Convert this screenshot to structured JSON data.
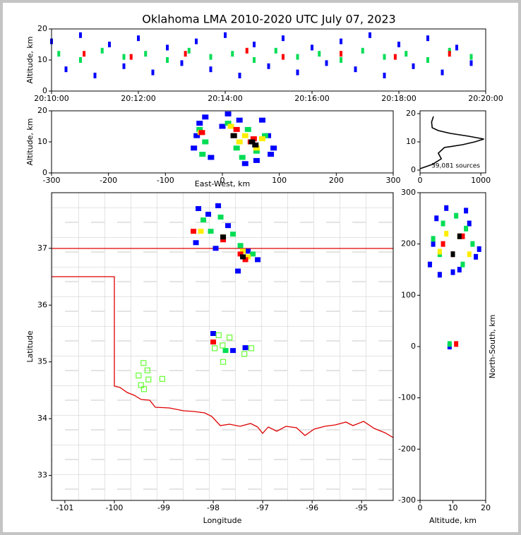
{
  "chart_data": [
    {
      "type": "density",
      "title": "Oklahoma LMA 2010-2020 UTC July 07, 2023",
      "ylabel": "Altitude, km",
      "xlim": [
        "20:10:00",
        "20:20:00"
      ],
      "xticks": [
        "20:10:00",
        "20:12:00",
        "20:14:00",
        "20:16:00",
        "20:18:00",
        "20:20:00"
      ],
      "ylim": [
        0,
        20
      ],
      "yticks": [
        0,
        10,
        20
      ],
      "series": [
        {
          "color": "#0000ff",
          "x": [
            "20:10:00",
            "20:10:20",
            "20:10:40",
            "20:11:00",
            "20:11:20",
            "20:11:40",
            "20:12:00",
            "20:12:20",
            "20:12:40",
            "20:13:00",
            "20:13:20",
            "20:13:40",
            "20:14:00",
            "20:14:20",
            "20:14:40",
            "20:15:00",
            "20:15:20",
            "20:15:40",
            "20:16:00",
            "20:16:20",
            "20:16:40",
            "20:17:00",
            "20:17:20",
            "20:17:40",
            "20:18:00",
            "20:18:20",
            "20:18:40",
            "20:19:00",
            "20:19:20",
            "20:19:40"
          ],
          "y": [
            16,
            7,
            18,
            5,
            15,
            8,
            17,
            6,
            14,
            9,
            16,
            7,
            18,
            5,
            15,
            8,
            17,
            6,
            14,
            9,
            16,
            7,
            18,
            5,
            15,
            8,
            17,
            6,
            14,
            9
          ]
        },
        {
          "color": "#00dd55",
          "x": [
            "20:10:10",
            "20:10:40",
            "20:11:10",
            "20:11:40",
            "20:12:10",
            "20:12:40",
            "20:13:10",
            "20:13:40",
            "20:14:10",
            "20:14:40",
            "20:15:10",
            "20:15:40",
            "20:16:10",
            "20:16:40",
            "20:17:10",
            "20:17:40",
            "20:18:10",
            "20:18:40",
            "20:19:10",
            "20:19:40"
          ],
          "y": [
            12,
            10,
            13,
            11,
            12,
            10,
            13,
            11,
            12,
            10,
            13,
            11,
            12,
            10,
            13,
            11,
            12,
            10,
            13,
            11
          ]
        },
        {
          "color": "#ff0000",
          "x": [
            "20:10:45",
            "20:11:50",
            "20:13:05",
            "20:14:30",
            "20:15:20",
            "20:16:40",
            "20:17:55",
            "20:19:10"
          ],
          "y": [
            12,
            11,
            12,
            13,
            11,
            12,
            11,
            12
          ]
        }
      ]
    },
    {
      "type": "density",
      "xlabel": "East-West, km",
      "ylabel": "Altitude, km",
      "xlim": [
        -300,
        300
      ],
      "xticks": [
        -300,
        -200,
        -100,
        0,
        100,
        200,
        300
      ],
      "ylim": [
        0,
        20
      ],
      "yticks": [
        0,
        10,
        20
      ],
      "series": [
        {
          "color": "#0000ff",
          "x": [
            -50,
            -40,
            -30,
            -20,
            0,
            10,
            30,
            60,
            80,
            90,
            -45,
            70,
            40,
            85
          ],
          "y": [
            8,
            16,
            18,
            5,
            15,
            19,
            17,
            4,
            12,
            8,
            12,
            17,
            3,
            6
          ]
        },
        {
          "color": "#00dd55",
          "x": [
            -40,
            -30,
            10,
            25,
            45,
            60,
            75,
            -35,
            35
          ],
          "y": [
            14,
            10,
            16,
            8,
            14,
            7,
            12,
            6,
            5
          ]
        },
        {
          "color": "#ffee00",
          "x": [
            -38,
            15,
            30,
            40,
            60,
            70
          ],
          "y": [
            13,
            15,
            10,
            12,
            8,
            11
          ]
        },
        {
          "color": "#ff0000",
          "x": [
            -36,
            20,
            25,
            50,
            55
          ],
          "y": [
            13,
            12,
            14,
            10,
            11
          ]
        },
        {
          "color": "#000000",
          "x": [
            20,
            52,
            58
          ],
          "y": [
            12,
            10,
            9
          ]
        }
      ]
    },
    {
      "type": "line",
      "annotation": "39,081 sources",
      "xlim": [
        0,
        1080
      ],
      "xticks": [
        0,
        1000
      ],
      "ylim": [
        -1,
        21
      ],
      "yticks": [
        0,
        10,
        20
      ],
      "series": [
        {
          "color": "#000000",
          "x": [
            0,
            200,
            350,
            300,
            400,
            700,
            900,
            1050,
            800,
            500,
            300,
            200,
            190,
            220
          ],
          "y": [
            0.5,
            2,
            4,
            6,
            8,
            9,
            10,
            11,
            12,
            13,
            14,
            15,
            17,
            19
          ]
        }
      ]
    },
    {
      "type": "map",
      "xlabel": "Longitude",
      "ylabel": "Latitude",
      "xlim": [
        -101.27,
        -94.36
      ],
      "xticks": [
        -101,
        -100,
        -99,
        -98,
        -97,
        -96,
        -95
      ],
      "ylim": [
        32.56,
        37.98
      ],
      "yticks": [
        33,
        34,
        35,
        36,
        37
      ],
      "series": [
        {
          "color": "#0000ff",
          "x": [
            -98.3,
            -98.1,
            -97.9,
            -97.7,
            -97.3,
            -97.1,
            -97.5,
            -98.35,
            -97.95,
            -97.6,
            -98.0,
            -97.35
          ],
          "y": [
            37.7,
            37.6,
            37.75,
            37.4,
            36.95,
            36.8,
            36.6,
            37.1,
            37.0,
            35.2,
            35.5,
            35.25
          ]
        },
        {
          "color": "#00dd55",
          "x": [
            -98.2,
            -97.85,
            -97.6,
            -97.45,
            -97.2,
            -98.05,
            -97.75
          ],
          "y": [
            37.5,
            37.55,
            37.25,
            37.05,
            36.9,
            37.3,
            35.2
          ]
        },
        {
          "color": "#ffee00",
          "x": [
            -98.25,
            -97.8,
            -97.4,
            -97.3
          ],
          "y": [
            37.3,
            37.2,
            36.95,
            36.85
          ]
        },
        {
          "color": "#ff0000",
          "x": [
            -98.4,
            -97.8,
            -97.45,
            -98.0,
            -97.35
          ],
          "y": [
            37.3,
            37.15,
            36.9,
            35.35,
            36.8
          ]
        },
        {
          "color": "#000000",
          "x": [
            -97.8,
            -97.4
          ],
          "y": [
            37.2,
            36.85
          ]
        }
      ],
      "stations": {
        "color": "#66ff33",
        "x": [
          -99.41,
          -99.33,
          -99.51,
          -99.31,
          -99.03,
          -99.46,
          -99.4,
          -97.89,
          -97.67,
          -97.97,
          -97.81,
          -97.23,
          -97.37,
          -97.8
        ],
        "y": [
          34.98,
          34.85,
          34.76,
          34.69,
          34.7,
          34.59,
          34.52,
          35.47,
          35.43,
          35.24,
          35.29,
          35.24,
          35.14,
          35.0
        ]
      }
    },
    {
      "type": "density",
      "xlabel": "Altitude, km",
      "ylabel": "North-South, km",
      "xlim": [
        0,
        20
      ],
      "xticks": [
        0,
        10,
        20
      ],
      "ylim": [
        -300,
        300
      ],
      "yticks": [
        -300,
        -200,
        -100,
        0,
        100,
        200,
        300
      ],
      "series": [
        {
          "color": "#0000ff",
          "x": [
            3,
            5,
            8,
            12,
            15,
            18,
            4,
            17,
            6,
            14,
            10,
            9
          ],
          "y": [
            160,
            250,
            270,
            150,
            240,
            190,
            200,
            175,
            140,
            265,
            145,
            0
          ]
        },
        {
          "color": "#00dd55",
          "x": [
            4,
            7,
            11,
            14,
            16,
            6,
            9,
            13
          ],
          "y": [
            210,
            240,
            255,
            230,
            200,
            180,
            5,
            160
          ]
        },
        {
          "color": "#ffee00",
          "x": [
            8,
            12,
            6,
            15
          ],
          "y": [
            220,
            215,
            185,
            180
          ]
        },
        {
          "color": "#ff0000",
          "x": [
            10,
            13,
            7,
            11
          ],
          "y": [
            180,
            215,
            200,
            5
          ]
        },
        {
          "color": "#000000",
          "x": [
            12,
            10
          ],
          "y": [
            215,
            180
          ]
        }
      ]
    }
  ]
}
